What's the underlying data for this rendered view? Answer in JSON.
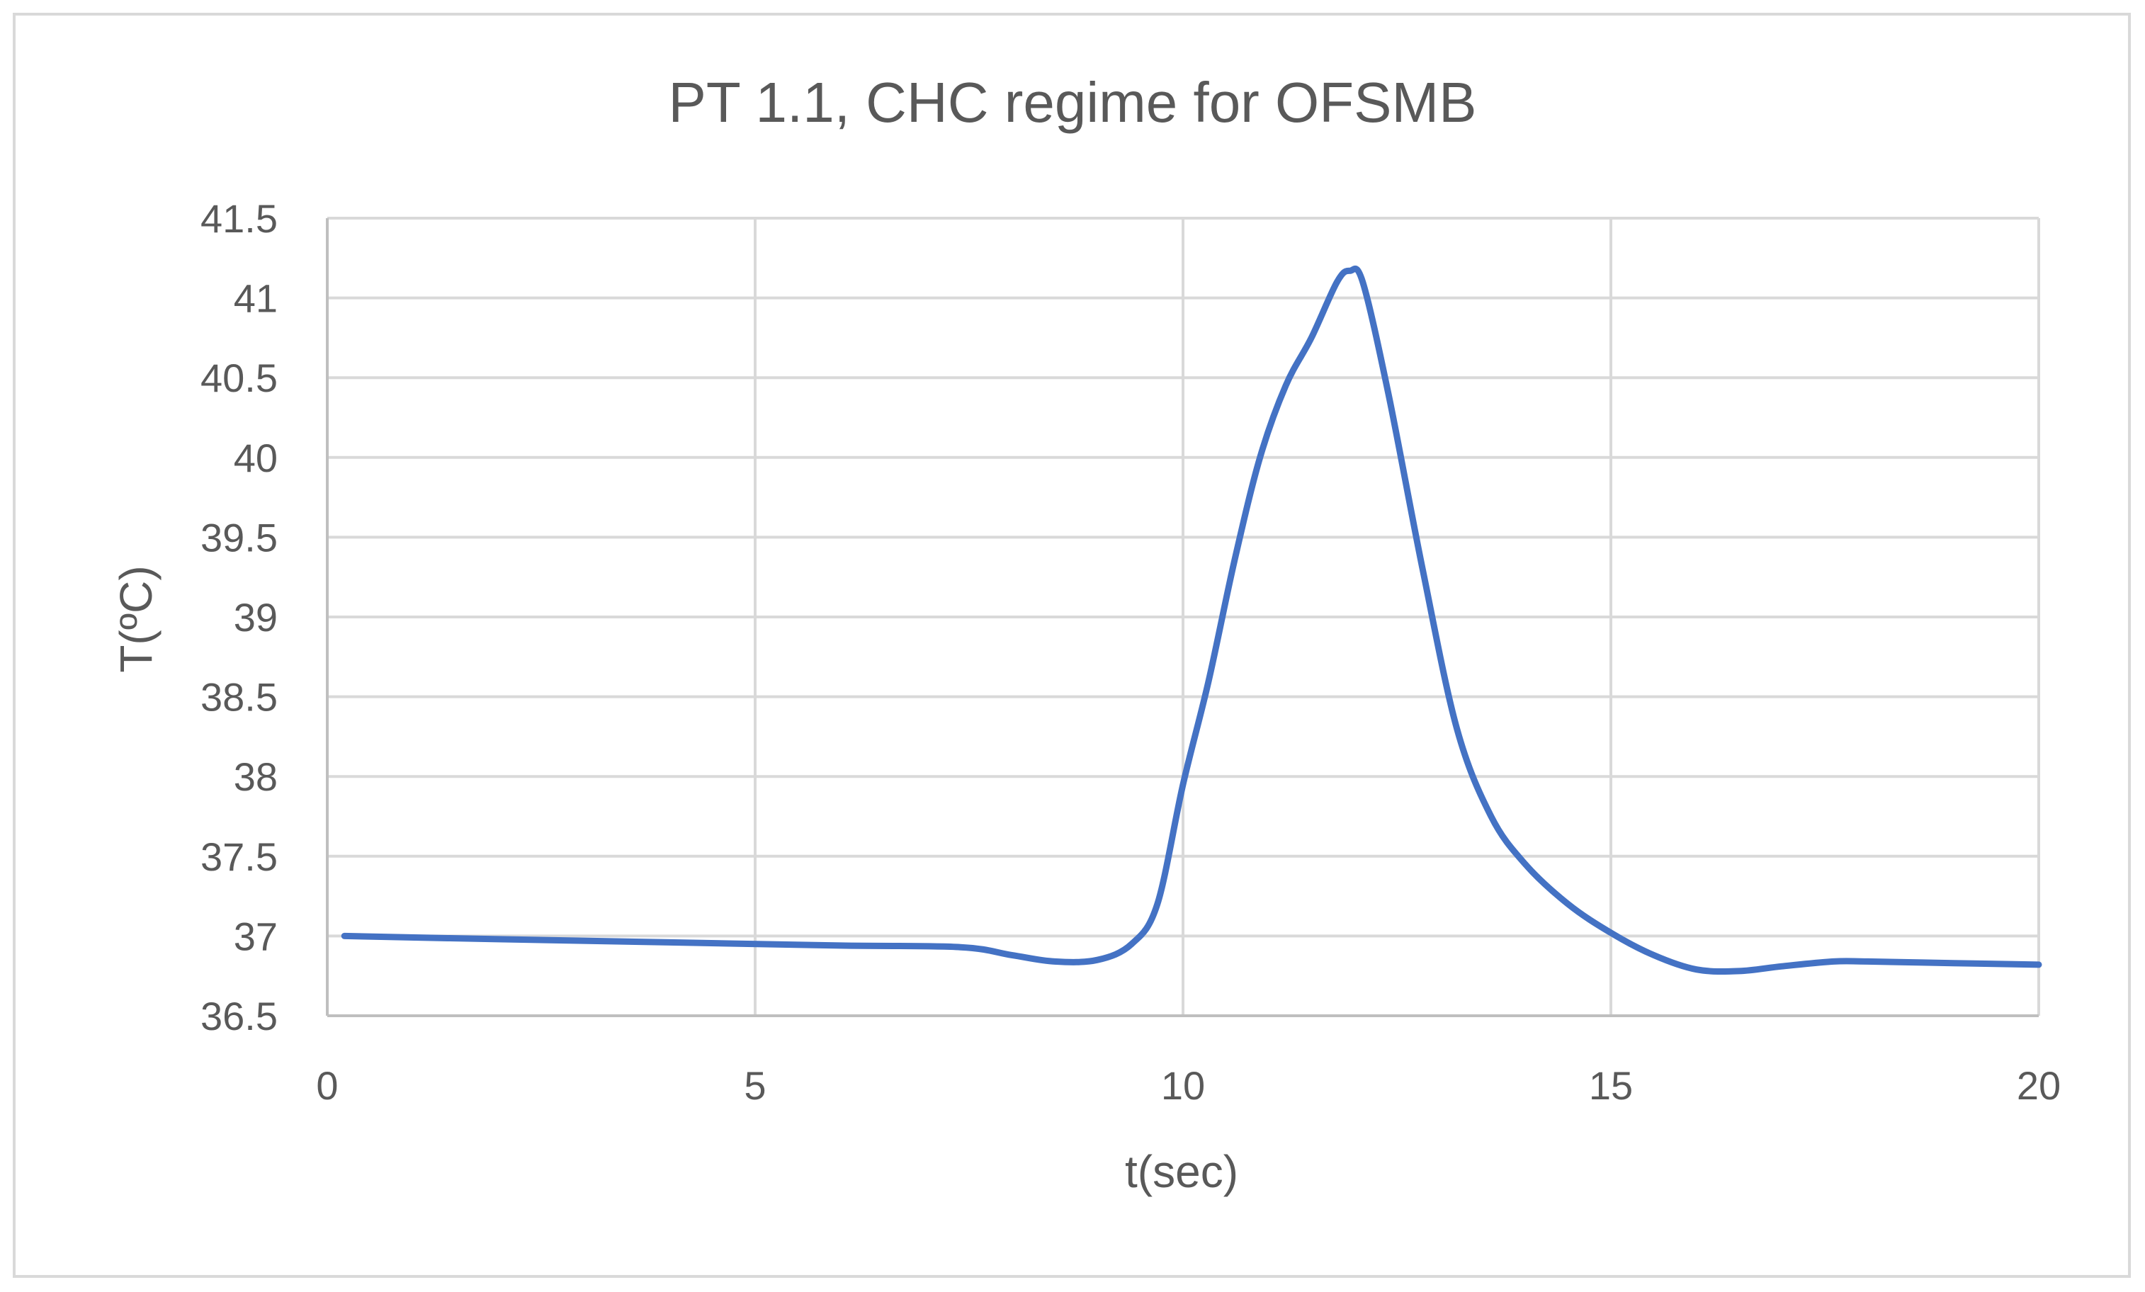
{
  "chart_data": {
    "type": "line",
    "title": "PT 1.1, CHC regime for OFSMB",
    "xlabel": "t(sec)",
    "ylabel": "T(ºC)",
    "xlim": [
      0,
      20
    ],
    "ylim": [
      36.5,
      41.5
    ],
    "x_ticks": [
      "0",
      "5",
      "10",
      "15",
      "20"
    ],
    "y_ticks": [
      "36.5",
      "37",
      "37.5",
      "38",
      "38.5",
      "39",
      "39.5",
      "40",
      "40.5",
      "41",
      "41.5"
    ],
    "grid": true,
    "legend": "none",
    "series": [
      {
        "color": "#4472c4",
        "x": [
          0.2,
          2,
          4,
          6,
          7.4,
          8,
          8.5,
          9,
          9.4,
          9.7,
          10,
          10.3,
          10.6,
          10.9,
          11.2,
          11.5,
          11.8,
          11.95,
          12.1,
          12.4,
          12.8,
          13.2,
          13.6,
          14,
          14.5,
          15,
          15.5,
          16,
          16.5,
          17,
          17.6,
          18,
          19,
          20
        ],
        "y": [
          37.0,
          36.98,
          36.96,
          36.94,
          36.93,
          36.88,
          36.84,
          36.85,
          36.95,
          37.2,
          37.95,
          38.6,
          39.35,
          40.0,
          40.45,
          40.75,
          41.1,
          41.17,
          41.1,
          40.4,
          39.3,
          38.3,
          37.75,
          37.45,
          37.2,
          37.02,
          36.88,
          36.79,
          36.78,
          36.81,
          36.84,
          36.84,
          36.83,
          36.82
        ]
      }
    ]
  }
}
